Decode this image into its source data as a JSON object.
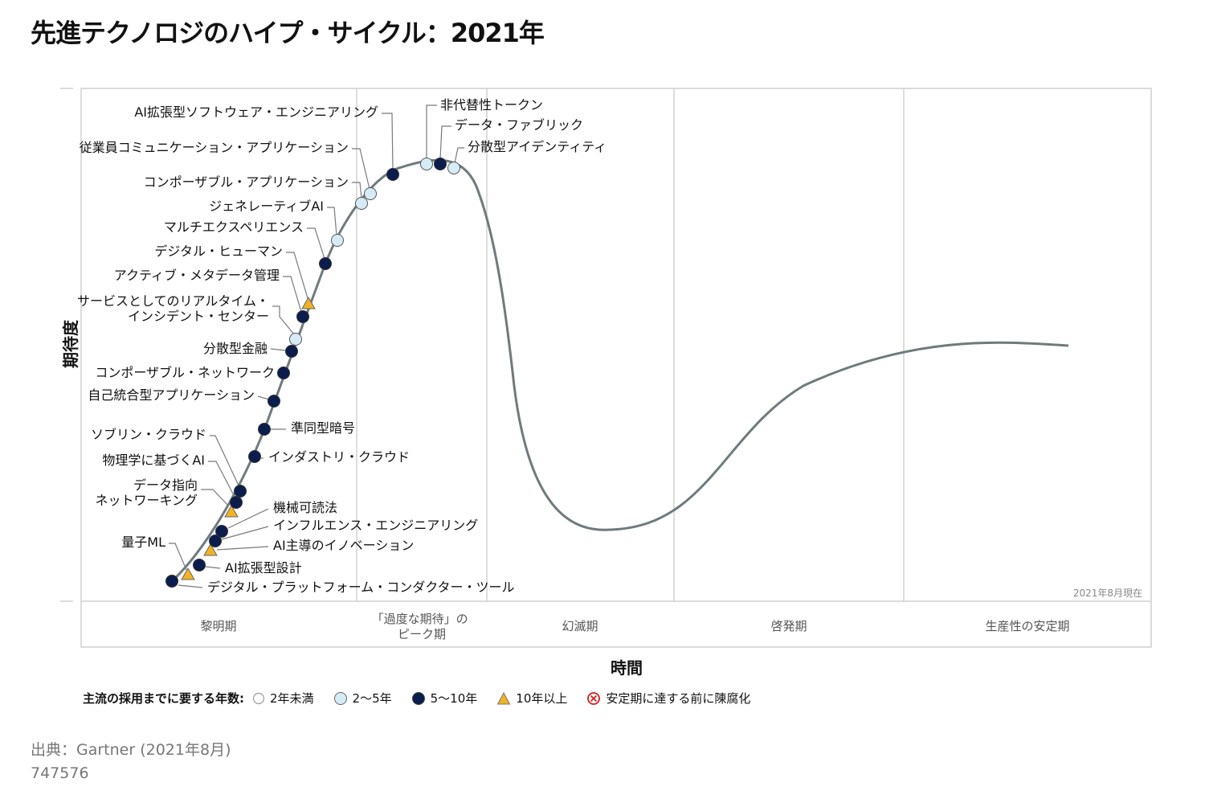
{
  "title": "先進テクノロジのハイプ・サイクル：2021年",
  "chart_data": {
    "type": "hype-cycle",
    "ylabel": "期待度",
    "xlabel": "時間",
    "as_of": "2021年8月現在",
    "phases": [
      {
        "name": "黎明期"
      },
      {
        "name": "「過度な期待」の\nピーク期"
      },
      {
        "name": "幻滅期"
      },
      {
        "name": "啓発期"
      },
      {
        "name": "生産性の安定期"
      }
    ],
    "technologies": [
      {
        "name": "デジタル・プラットフォーム・コンダクター・ツール",
        "years": "5〜10年"
      },
      {
        "name": "量子ML",
        "years": "10年以上"
      },
      {
        "name": "AI拡張型設計",
        "years": "5〜10年"
      },
      {
        "name": "AI主導のイノベーション",
        "years": "10年以上"
      },
      {
        "name": "インフルエンス・エンジニアリング",
        "years": "5〜10年"
      },
      {
        "name": "機械可読法",
        "years": "5〜10年"
      },
      {
        "name": "データ指向\nネットワーキング",
        "years": "10年以上"
      },
      {
        "name": "物理学に基づくAI",
        "years": "5〜10年"
      },
      {
        "name": "ソブリン・クラウド",
        "years": "5〜10年"
      },
      {
        "name": "インダストリ・クラウド",
        "years": "5〜10年"
      },
      {
        "name": "準同型暗号",
        "years": "5〜10年"
      },
      {
        "name": "自己統合型アプリケーション",
        "years": "5〜10年"
      },
      {
        "name": "コンポーザブル・ネットワーク",
        "years": "5〜10年"
      },
      {
        "name": "分散型金融",
        "years": "5〜10年"
      },
      {
        "name": "サービスとしてのリアルタイム・\nインシデント・センター",
        "years": "2〜5年"
      },
      {
        "name": "アクティブ・メタデータ管理",
        "years": "5〜10年"
      },
      {
        "name": "デジタル・ヒューマン",
        "years": "10年以上"
      },
      {
        "name": "マルチエクスペリエンス",
        "years": "5〜10年"
      },
      {
        "name": "ジェネレーティブAI",
        "years": "2〜5年"
      },
      {
        "name": "コンポーザブル・アプリケーション",
        "years": "2〜5年"
      },
      {
        "name": "従業員コミュニケーション・アプリケーション",
        "years": "2〜5年"
      },
      {
        "name": "AI拡張型ソフトウェア・エンジニアリング",
        "years": "5〜10年"
      },
      {
        "name": "非代替性トークン",
        "years": "2〜5年"
      },
      {
        "name": "データ・ファブリック",
        "years": "5〜10年"
      },
      {
        "name": "分散型アイデンティティ",
        "years": "2〜5年"
      }
    ]
  },
  "legend": {
    "lead": "主流の採用までに要する年数:",
    "items": [
      {
        "label": "2年未満",
        "kind": "hollow"
      },
      {
        "label": "2〜5年",
        "kind": "light"
      },
      {
        "label": "5〜10年",
        "kind": "dark"
      },
      {
        "label": "10年以上",
        "kind": "triangle"
      },
      {
        "label": "安定期に達する前に陳腐化",
        "kind": "obsolete"
      }
    ]
  },
  "colors": {
    "dark": "#0b1d4d",
    "light": "#d5ecf6",
    "triangle": "#f0b323",
    "curve": "#6f7a7d",
    "obsolete": "#d11f1f"
  },
  "source": "出典：Gartner (2021年8月)",
  "doc_id": "747576"
}
